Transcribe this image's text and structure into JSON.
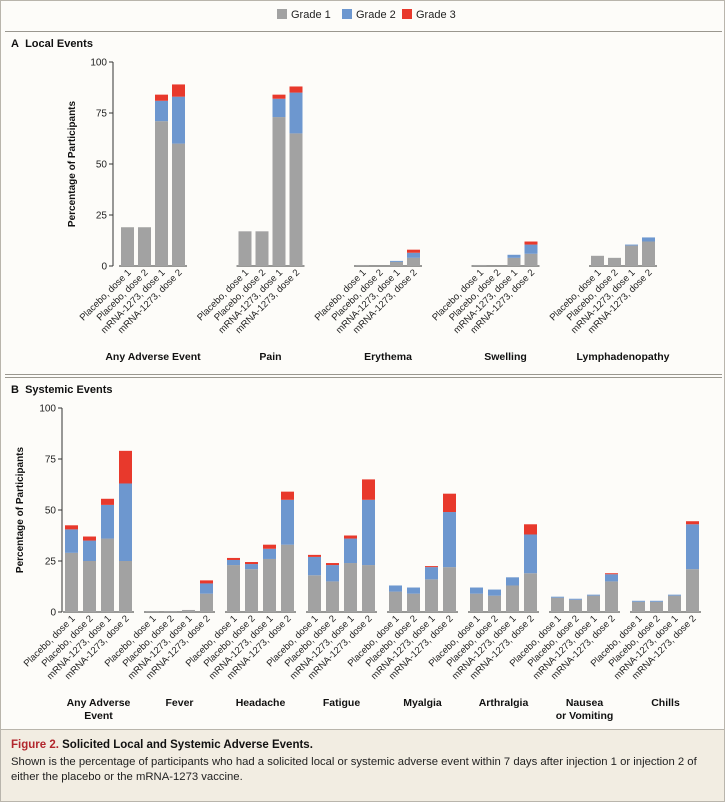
{
  "legend": [
    {
      "label": "Grade 1",
      "color": "#a2a2a2"
    },
    {
      "label": "Grade 2",
      "color": "#6d97cf"
    },
    {
      "label": "Grade 3",
      "color": "#e8392c"
    }
  ],
  "arms": [
    "Placebo, dose 1",
    "Placebo, dose 2",
    "mRNA-1273, dose 1",
    "mRNA-1273, dose 2"
  ],
  "chart_data": [
    {
      "type": "bar",
      "stacked": true,
      "panel_letter": "A",
      "title": "Local Events",
      "ylabel": "Percentage of Participants",
      "ylim": [
        0,
        100
      ],
      "yticks": [
        0,
        25,
        50,
        75,
        100
      ],
      "groups": [
        {
          "label": [
            "Any Adverse Event"
          ],
          "bars": [
            [
              19,
              0,
              0
            ],
            [
              19,
              0,
              0
            ],
            [
              71,
              10,
              3
            ],
            [
              60,
              23,
              6
            ]
          ]
        },
        {
          "label": [
            "Pain"
          ],
          "bars": [
            [
              17,
              0,
              0
            ],
            [
              17,
              0,
              0
            ],
            [
              73,
              9,
              2
            ],
            [
              65,
              20,
              3
            ]
          ]
        },
        {
          "label": [
            "Erythema"
          ],
          "bars": [
            [
              0.5,
              0,
              0
            ],
            [
              0,
              0,
              0
            ],
            [
              2,
              0.5,
              0
            ],
            [
              4,
              2.5,
              1.5
            ]
          ]
        },
        {
          "label": [
            "Swelling"
          ],
          "bars": [
            [
              0.5,
              0,
              0
            ],
            [
              0,
              0,
              0
            ],
            [
              4,
              1.5,
              0
            ],
            [
              6,
              4.5,
              1.5
            ]
          ]
        },
        {
          "label": [
            "Lymphadenopathy"
          ],
          "bars": [
            [
              5,
              0,
              0
            ],
            [
              4,
              0,
              0
            ],
            [
              10,
              0.5,
              0
            ],
            [
              12,
              2,
              0
            ]
          ]
        }
      ]
    },
    {
      "type": "bar",
      "stacked": true,
      "panel_letter": "B",
      "title": "Systemic Events",
      "ylabel": "Percentage of Participants",
      "ylim": [
        0,
        100
      ],
      "yticks": [
        0,
        25,
        50,
        75,
        100
      ],
      "groups": [
        {
          "label": [
            "Any Adverse",
            "Event"
          ],
          "bars": [
            [
              29,
              11.5,
              2
            ],
            [
              25,
              10,
              2
            ],
            [
              36,
              16.5,
              3
            ],
            [
              25,
              38,
              16
            ]
          ]
        },
        {
          "label": [
            "Fever"
          ],
          "bars": [
            [
              0.5,
              0,
              0
            ],
            [
              0.5,
              0,
              0
            ],
            [
              1,
              0,
              0
            ],
            [
              9,
              5,
              1.5
            ]
          ]
        },
        {
          "label": [
            "Headache"
          ],
          "bars": [
            [
              23,
              2.5,
              1
            ],
            [
              21,
              2.5,
              1
            ],
            [
              26,
              5,
              2
            ],
            [
              33,
              22,
              4
            ]
          ]
        },
        {
          "label": [
            "Fatigue"
          ],
          "bars": [
            [
              18,
              9,
              1
            ],
            [
              15,
              8,
              1
            ],
            [
              24,
              12,
              1.5
            ],
            [
              23,
              32,
              10
            ]
          ]
        },
        {
          "label": [
            "Myalgia"
          ],
          "bars": [
            [
              10,
              3,
              0
            ],
            [
              9,
              3,
              0
            ],
            [
              16,
              6,
              0.5
            ],
            [
              22,
              27,
              9
            ]
          ]
        },
        {
          "label": [
            "Arthralgia"
          ],
          "bars": [
            [
              9,
              3,
              0
            ],
            [
              8,
              3,
              0
            ],
            [
              13,
              4,
              0
            ],
            [
              19,
              19,
              5
            ]
          ]
        },
        {
          "label": [
            "Nausea",
            "or Vomiting"
          ],
          "bars": [
            [
              7,
              0.5,
              0
            ],
            [
              6,
              0.5,
              0
            ],
            [
              8,
              0.5,
              0
            ],
            [
              15,
              3.5,
              0.5
            ]
          ]
        },
        {
          "label": [
            "Chills"
          ],
          "bars": [
            [
              5,
              0.5,
              0
            ],
            [
              5,
              0.5,
              0
            ],
            [
              8,
              0.5,
              0
            ],
            [
              21,
              22,
              1.5
            ]
          ]
        }
      ]
    }
  ],
  "caption": {
    "label": "Figure 2.",
    "heading": "Solicited Local and Systemic Adverse Events.",
    "text": "Shown is the percentage of participants who had a solicited local or systemic adverse event within 7 days after injection 1 or injection 2 of either the placebo or the mRNA-1273 vaccine."
  }
}
